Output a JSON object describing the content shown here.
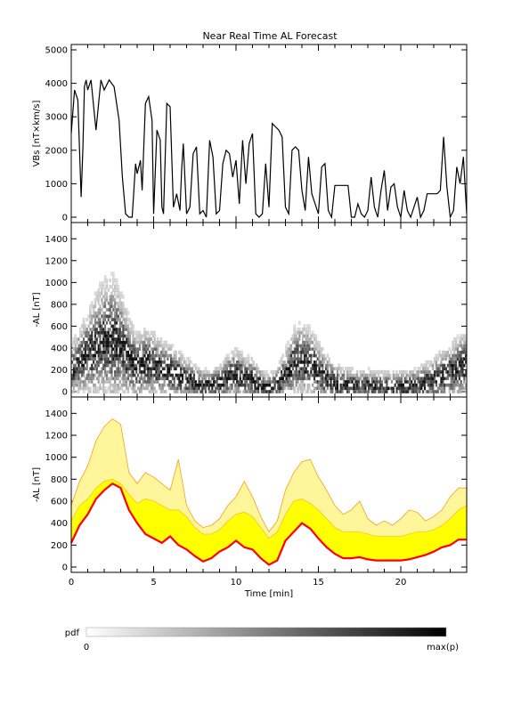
{
  "title": "Near Real Time AL Forecast",
  "chart_data": [
    {
      "type": "line",
      "panel": "vbs",
      "ylabel": "VBs [nT×km/s]",
      "ylim": [
        0,
        5000
      ],
      "yticks": [
        0,
        1000,
        2000,
        3000,
        4000,
        5000
      ],
      "xlim": [
        0,
        24
      ],
      "series": [
        {
          "color": "#000000",
          "x": [
            0,
            0.2,
            0.4,
            0.6,
            0.7,
            0.8,
            0.9,
            1.0,
            1.2,
            1.5,
            1.8,
            2.0,
            2.3,
            2.6,
            2.9,
            3.1,
            3.3,
            3.5,
            3.7,
            3.9,
            4.0,
            4.2,
            4.3,
            4.5,
            4.7,
            4.9,
            5.0,
            5.2,
            5.4,
            5.5,
            5.6,
            5.8,
            6.0,
            6.2,
            6.4,
            6.6,
            6.7,
            6.8,
            7.0,
            7.2,
            7.4,
            7.6,
            7.8,
            8.0,
            8.2,
            8.4,
            8.6,
            8.8,
            9.0,
            9.2,
            9.4,
            9.6,
            9.8,
            10.0,
            10.2,
            10.4,
            10.6,
            10.8,
            11.0,
            11.2,
            11.4,
            11.6,
            11.8,
            12.0,
            12.2,
            12.4,
            12.6,
            12.8,
            13.0,
            13.2,
            13.4,
            13.6,
            13.8,
            14.0,
            14.2,
            14.4,
            14.6,
            14.8,
            15.0,
            15.2,
            15.4,
            15.6,
            15.8,
            16.0,
            16.2,
            16.4,
            16.6,
            16.8,
            17.0,
            17.2,
            17.4,
            17.6,
            17.8,
            18.0,
            18.2,
            18.4,
            18.6,
            18.8,
            19.0,
            19.2,
            19.4,
            19.6,
            19.8,
            20.0,
            20.2,
            20.4,
            20.6,
            20.8,
            21.0,
            21.2,
            21.4,
            21.6,
            21.8,
            22.0,
            22.2,
            22.4,
            22.6,
            22.8,
            23.0,
            23.2,
            23.4,
            23.6,
            23.8,
            24.0
          ],
          "y": [
            2500,
            3800,
            3500,
            600,
            2000,
            3900,
            4100,
            3800,
            4100,
            2600,
            4100,
            3800,
            4100,
            3900,
            2900,
            1200,
            100,
            0,
            0,
            1600,
            1300,
            1700,
            800,
            3400,
            3600,
            2900,
            100,
            2600,
            2300,
            300,
            100,
            3400,
            3300,
            300,
            700,
            200,
            1400,
            2200,
            100,
            300,
            1900,
            2100,
            100,
            200,
            0,
            2300,
            1800,
            100,
            200,
            1600,
            2000,
            1900,
            1200,
            1700,
            400,
            2300,
            1000,
            2200,
            2500,
            100,
            0,
            100,
            1600,
            300,
            2800,
            2700,
            2600,
            2400,
            300,
            100,
            2000,
            2100,
            2000,
            800,
            200,
            1800,
            700,
            400,
            100,
            1500,
            1600,
            200,
            0,
            950,
            950,
            950,
            950,
            950,
            0,
            0,
            400,
            100,
            0,
            200,
            1200,
            300,
            0,
            800,
            1400,
            200,
            900,
            1000,
            300,
            0,
            800,
            200,
            0,
            300,
            600,
            0,
            200,
            700,
            700,
            700,
            700,
            800,
            2400,
            900,
            0,
            200,
            1500,
            1000,
            1800,
            100
          ]
        }
      ]
    },
    {
      "type": "heatmap",
      "panel": "pdf",
      "ylabel": "-AL [nT]",
      "ylim": [
        0,
        1500
      ],
      "yticks": [
        0,
        200,
        400,
        600,
        800,
        1000,
        1200,
        1400
      ],
      "xlim": [
        0,
        24
      ],
      "x": [
        0,
        0.5,
        1,
        1.5,
        2,
        2.5,
        3,
        3.5,
        4,
        4.5,
        5,
        5.5,
        6,
        6.5,
        7,
        7.5,
        8,
        8.5,
        9,
        9.5,
        10,
        10.5,
        11,
        11.5,
        12,
        12.5,
        13,
        13.5,
        14,
        14.5,
        15,
        15.5,
        16,
        16.5,
        17,
        17.5,
        18,
        18.5,
        19,
        19.5,
        20,
        20.5,
        21,
        21.5,
        22,
        22.5,
        23,
        23.5,
        24
      ],
      "center": [
        180,
        280,
        330,
        420,
        470,
        470,
        420,
        300,
        220,
        260,
        240,
        200,
        180,
        150,
        110,
        80,
        60,
        60,
        80,
        130,
        160,
        120,
        110,
        60,
        30,
        60,
        160,
        260,
        290,
        260,
        180,
        120,
        80,
        60,
        55,
        50,
        50,
        45,
        45,
        45,
        45,
        50,
        60,
        80,
        100,
        140,
        170,
        220,
        240
      ],
      "spread": [
        300,
        400,
        500,
        650,
        750,
        800,
        700,
        500,
        400,
        420,
        400,
        350,
        330,
        300,
        250,
        200,
        170,
        170,
        200,
        260,
        300,
        270,
        250,
        180,
        150,
        200,
        300,
        420,
        450,
        420,
        350,
        280,
        230,
        200,
        190,
        180,
        180,
        170,
        170,
        170,
        170,
        180,
        200,
        230,
        260,
        300,
        330,
        380,
        400
      ],
      "colorscale": {
        "label": "pdf",
        "min_label": "0",
        "max_label": "max(p)"
      }
    },
    {
      "type": "area",
      "panel": "forecast",
      "ylabel": "-AL [nT]",
      "xlabel": "Time [min]",
      "ylim": [
        0,
        1500
      ],
      "yticks": [
        0,
        200,
        400,
        600,
        800,
        1000,
        1200,
        1400
      ],
      "xlim": [
        0,
        24
      ],
      "xticks": [
        0,
        5,
        10,
        15,
        20
      ],
      "x": [
        0,
        0.5,
        1,
        1.5,
        2,
        2.5,
        3,
        3.5,
        4,
        4.5,
        5,
        5.5,
        6,
        6.5,
        7,
        7.5,
        8,
        8.5,
        9,
        9.5,
        10,
        10.5,
        11,
        11.5,
        12,
        12.5,
        13,
        13.5,
        14,
        14.5,
        15,
        15.5,
        16,
        16.5,
        17,
        17.5,
        18,
        18.5,
        19,
        19.5,
        20,
        20.5,
        21,
        21.5,
        22,
        22.5,
        23,
        23.5,
        24
      ],
      "series": [
        {
          "color": "#fff59a",
          "values": [
            560,
            780,
            920,
            1150,
            1280,
            1350,
            1300,
            860,
            760,
            860,
            820,
            760,
            700,
            980,
            560,
            420,
            360,
            380,
            440,
            560,
            640,
            780,
            640,
            460,
            320,
            420,
            700,
            860,
            960,
            980,
            820,
            700,
            560,
            480,
            520,
            600,
            440,
            380,
            420,
            380,
            440,
            520,
            500,
            420,
            460,
            520,
            640,
            720,
            720
          ]
        },
        {
          "color": "#ffff00",
          "values": [
            420,
            560,
            620,
            720,
            780,
            800,
            760,
            660,
            580,
            620,
            600,
            560,
            520,
            520,
            460,
            360,
            300,
            300,
            340,
            420,
            480,
            500,
            460,
            360,
            260,
            320,
            480,
            600,
            620,
            580,
            520,
            440,
            360,
            320,
            320,
            320,
            300,
            280,
            280,
            280,
            280,
            300,
            320,
            320,
            340,
            380,
            440,
            520,
            560
          ]
        },
        {
          "color": "#ff0000",
          "values": [
            220,
            380,
            480,
            620,
            700,
            760,
            720,
            520,
            400,
            300,
            260,
            220,
            280,
            200,
            160,
            100,
            50,
            80,
            140,
            180,
            240,
            180,
            160,
            80,
            20,
            60,
            240,
            320,
            400,
            350,
            260,
            180,
            120,
            80,
            80,
            90,
            70,
            60,
            60,
            60,
            60,
            70,
            90,
            110,
            140,
            180,
            200,
            250,
            250
          ]
        }
      ]
    }
  ]
}
